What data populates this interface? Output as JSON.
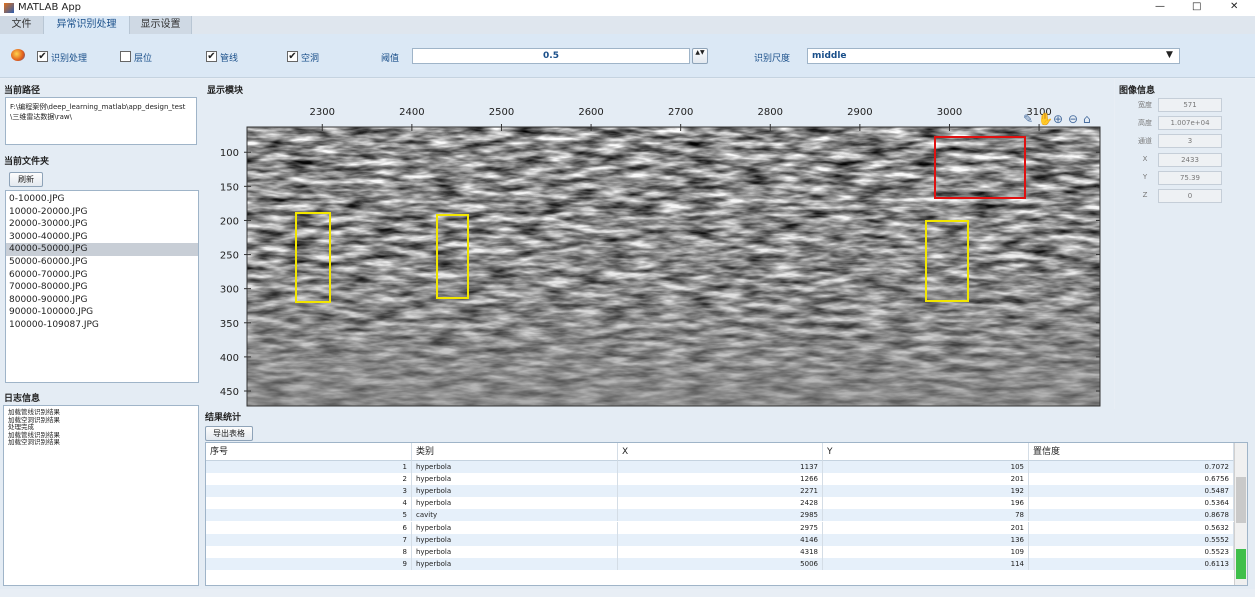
{
  "window": {
    "title": "MATLAB App"
  },
  "tabs": [
    "文件",
    "异常识别处理",
    "显示设置"
  ],
  "toolbar": {
    "checkboxes": [
      {
        "label": "识别处理",
        "checked": true
      },
      {
        "label": "层位",
        "checked": false
      },
      {
        "label": "管线",
        "checked": true
      },
      {
        "label": "空洞",
        "checked": true
      }
    ],
    "threshold_label": "阈值",
    "threshold": "0.5",
    "scale_label": "识别尺度",
    "scale": "middle"
  },
  "left": {
    "path_title": "当前路径",
    "path": "F:\\编程案例\\deep_learning_matlab\\app_design_test\\三维雷达数据\\raw\\",
    "folder_title": "当前文件夹",
    "refresh": "刷新",
    "files": [
      "0-10000.JPG",
      "10000-20000.JPG",
      "20000-30000.JPG",
      "30000-40000.JPG",
      "40000-50000.JPG",
      "50000-60000.JPG",
      "60000-70000.JPG",
      "70000-80000.JPG",
      "80000-90000.JPG",
      "90000-100000.JPG",
      "100000-109087.JPG"
    ],
    "selected_file": 4,
    "log_title": "日志信息",
    "log": [
      "加载管线识别结果",
      "加载空洞识别结果",
      "处理完成",
      "加载管线识别结果",
      "加载空洞识别结果"
    ]
  },
  "display": {
    "title": "显示模块",
    "xlim": [
      2216,
      3168
    ],
    "ylim": [
      63,
      472
    ],
    "xticks": [
      2300,
      2400,
      2500,
      2600,
      2700,
      2800,
      2900,
      3000,
      3100
    ],
    "yticks": [
      100,
      150,
      200,
      250,
      300,
      350,
      400,
      450
    ]
  },
  "image_info": {
    "title": "图像信息",
    "fields": [
      {
        "label": "宽度",
        "value": "571"
      },
      {
        "label": "高度",
        "value": "1.007e+04"
      },
      {
        "label": "通道",
        "value": "3"
      },
      {
        "label": "X",
        "value": "2433"
      },
      {
        "label": "Y",
        "value": "75.39"
      },
      {
        "label": "Z",
        "value": "0"
      }
    ]
  },
  "results": {
    "title": "结果统计",
    "export": "导出表格",
    "columns": [
      "序号",
      "类别",
      "X",
      "Y",
      "置信度"
    ],
    "rows": [
      [
        1,
        "hyperbola",
        1137,
        105,
        0.7072
      ],
      [
        2,
        "hyperbola",
        1266,
        201,
        0.6756
      ],
      [
        3,
        "hyperbola",
        2271,
        192,
        0.5487
      ],
      [
        4,
        "hyperbola",
        2428,
        196,
        0.5364
      ],
      [
        5,
        "cavity",
        2985,
        78,
        0.8678
      ],
      [
        6,
        "hyperbola",
        2975,
        201,
        0.5632
      ],
      [
        7,
        "hyperbola",
        4146,
        136,
        0.5552
      ],
      [
        8,
        "hyperbola",
        4318,
        109,
        0.5523
      ],
      [
        9,
        "hyperbola",
        5006,
        114,
        0.6113
      ]
    ]
  }
}
